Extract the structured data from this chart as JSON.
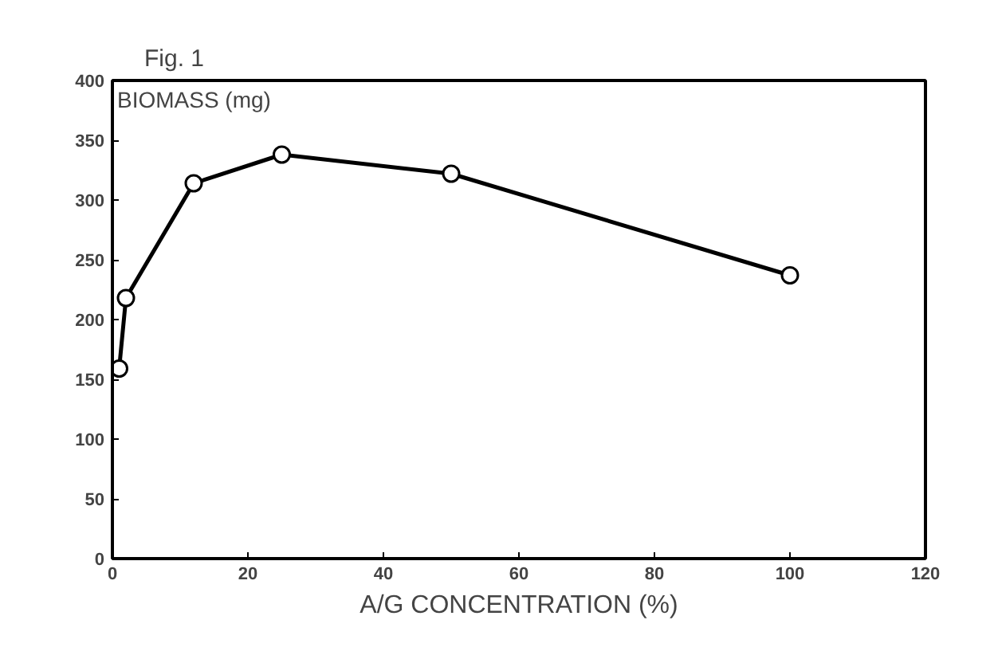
{
  "chart_data": {
    "type": "line",
    "title": "Fig. 1",
    "ylabel": "BIOMASS (mg)",
    "xlabel": "A/G CONCENTRATION (%)",
    "x": [
      1,
      2,
      12,
      25,
      50,
      100
    ],
    "series": [
      {
        "color": "#000000",
        "values": [
          159,
          218,
          314,
          338,
          322,
          237
        ]
      }
    ],
    "xlim": [
      0,
      120
    ],
    "xticks": [
      0,
      20,
      40,
      60,
      80,
      100,
      120
    ],
    "ylim": [
      0,
      400
    ],
    "yticks": [
      0,
      50,
      100,
      150,
      200,
      250,
      300,
      350,
      400
    ],
    "marker": "circle",
    "line_style": "solid"
  }
}
